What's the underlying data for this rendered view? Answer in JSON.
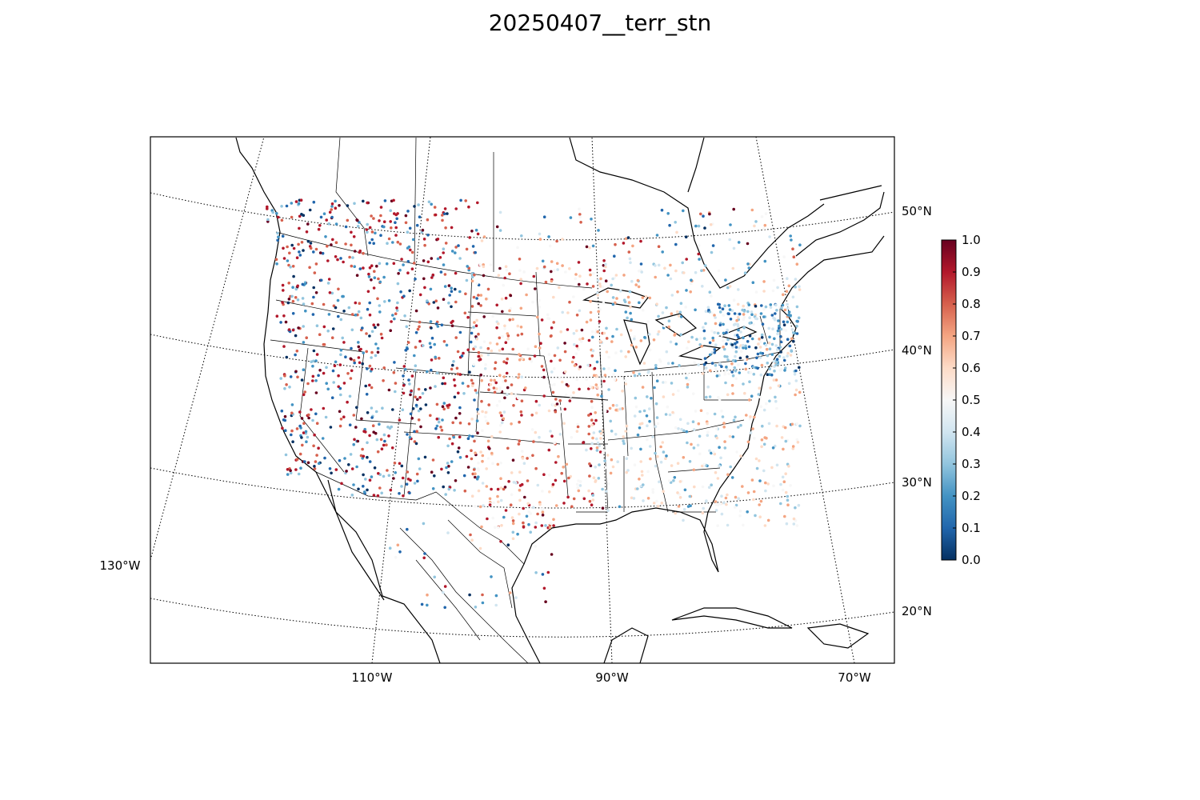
{
  "title": "20250407__terr_stn",
  "longitude_labels": [
    "130°W",
    "110°W",
    "90°W",
    "70°W"
  ],
  "latitude_labels": [
    "50°N",
    "40°N",
    "30°N",
    "20°N"
  ],
  "colorbar": {
    "ticks": [
      "0.0",
      "0.1",
      "0.2",
      "0.3",
      "0.4",
      "0.5",
      "0.6",
      "0.7",
      "0.8",
      "0.9",
      "1.0"
    ],
    "min": 0.0,
    "max": 1.0,
    "colormap": "RdBu_r",
    "stops": [
      "#053061",
      "#2166ac",
      "#4393c3",
      "#92c5de",
      "#d1e5f0",
      "#f7f7f7",
      "#fddbc7",
      "#f4a582",
      "#d6604d",
      "#b2182b",
      "#67001f"
    ]
  }
}
